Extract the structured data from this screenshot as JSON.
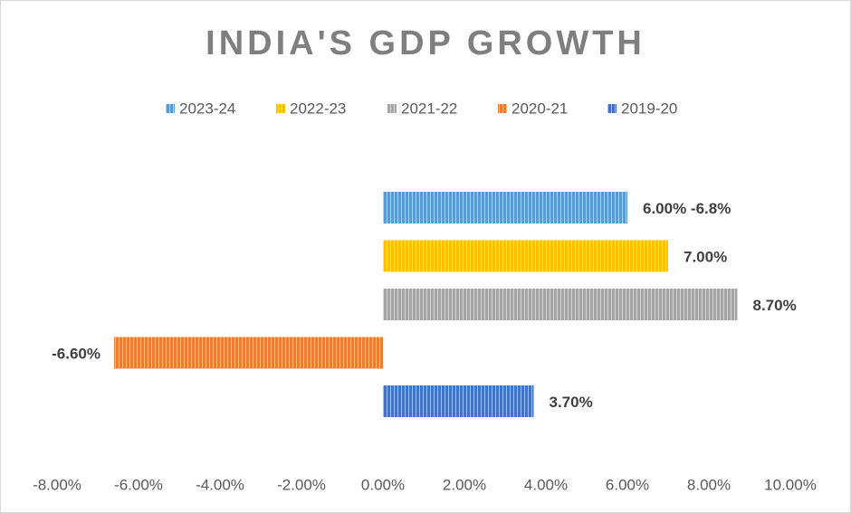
{
  "chart_data": {
    "type": "bar",
    "orientation": "horizontal",
    "title": "INDIA'S GDP GROWTH",
    "categories": [
      null
    ],
    "series": [
      {
        "name": "2023-24",
        "color": "#5b9bd5",
        "values": [
          6.0
        ],
        "value_labels": [
          "6.00% -6.8%"
        ]
      },
      {
        "name": "2022-23",
        "color": "#ffc000",
        "values": [
          7.0
        ],
        "value_labels": [
          "7.00%"
        ]
      },
      {
        "name": "2021-22",
        "color": "#a5a5a5",
        "values": [
          8.7
        ],
        "value_labels": [
          "8.70%"
        ]
      },
      {
        "name": "2020-21",
        "color": "#ed7d31",
        "values": [
          -6.6
        ],
        "value_labels": [
          "-6.60%"
        ]
      },
      {
        "name": "2019-20",
        "color": "#4472c4",
        "values": [
          3.7
        ],
        "value_labels": [
          "3.70%"
        ]
      }
    ],
    "xlim": [
      -8,
      10
    ],
    "xticks": [
      {
        "value": -8,
        "label": "-8.00%"
      },
      {
        "value": -6,
        "label": "-6.00%"
      },
      {
        "value": -4,
        "label": "-4.00%"
      },
      {
        "value": -2,
        "label": "-2.00%"
      },
      {
        "value": 0,
        "label": "0.00%"
      },
      {
        "value": 2,
        "label": "2.00%"
      },
      {
        "value": 4,
        "label": "4.00%"
      },
      {
        "value": 6,
        "label": "6.00%"
      },
      {
        "value": 8,
        "label": "8.00%"
      },
      {
        "value": 10,
        "label": "10.00%"
      }
    ],
    "grid": false,
    "legend": "top"
  }
}
